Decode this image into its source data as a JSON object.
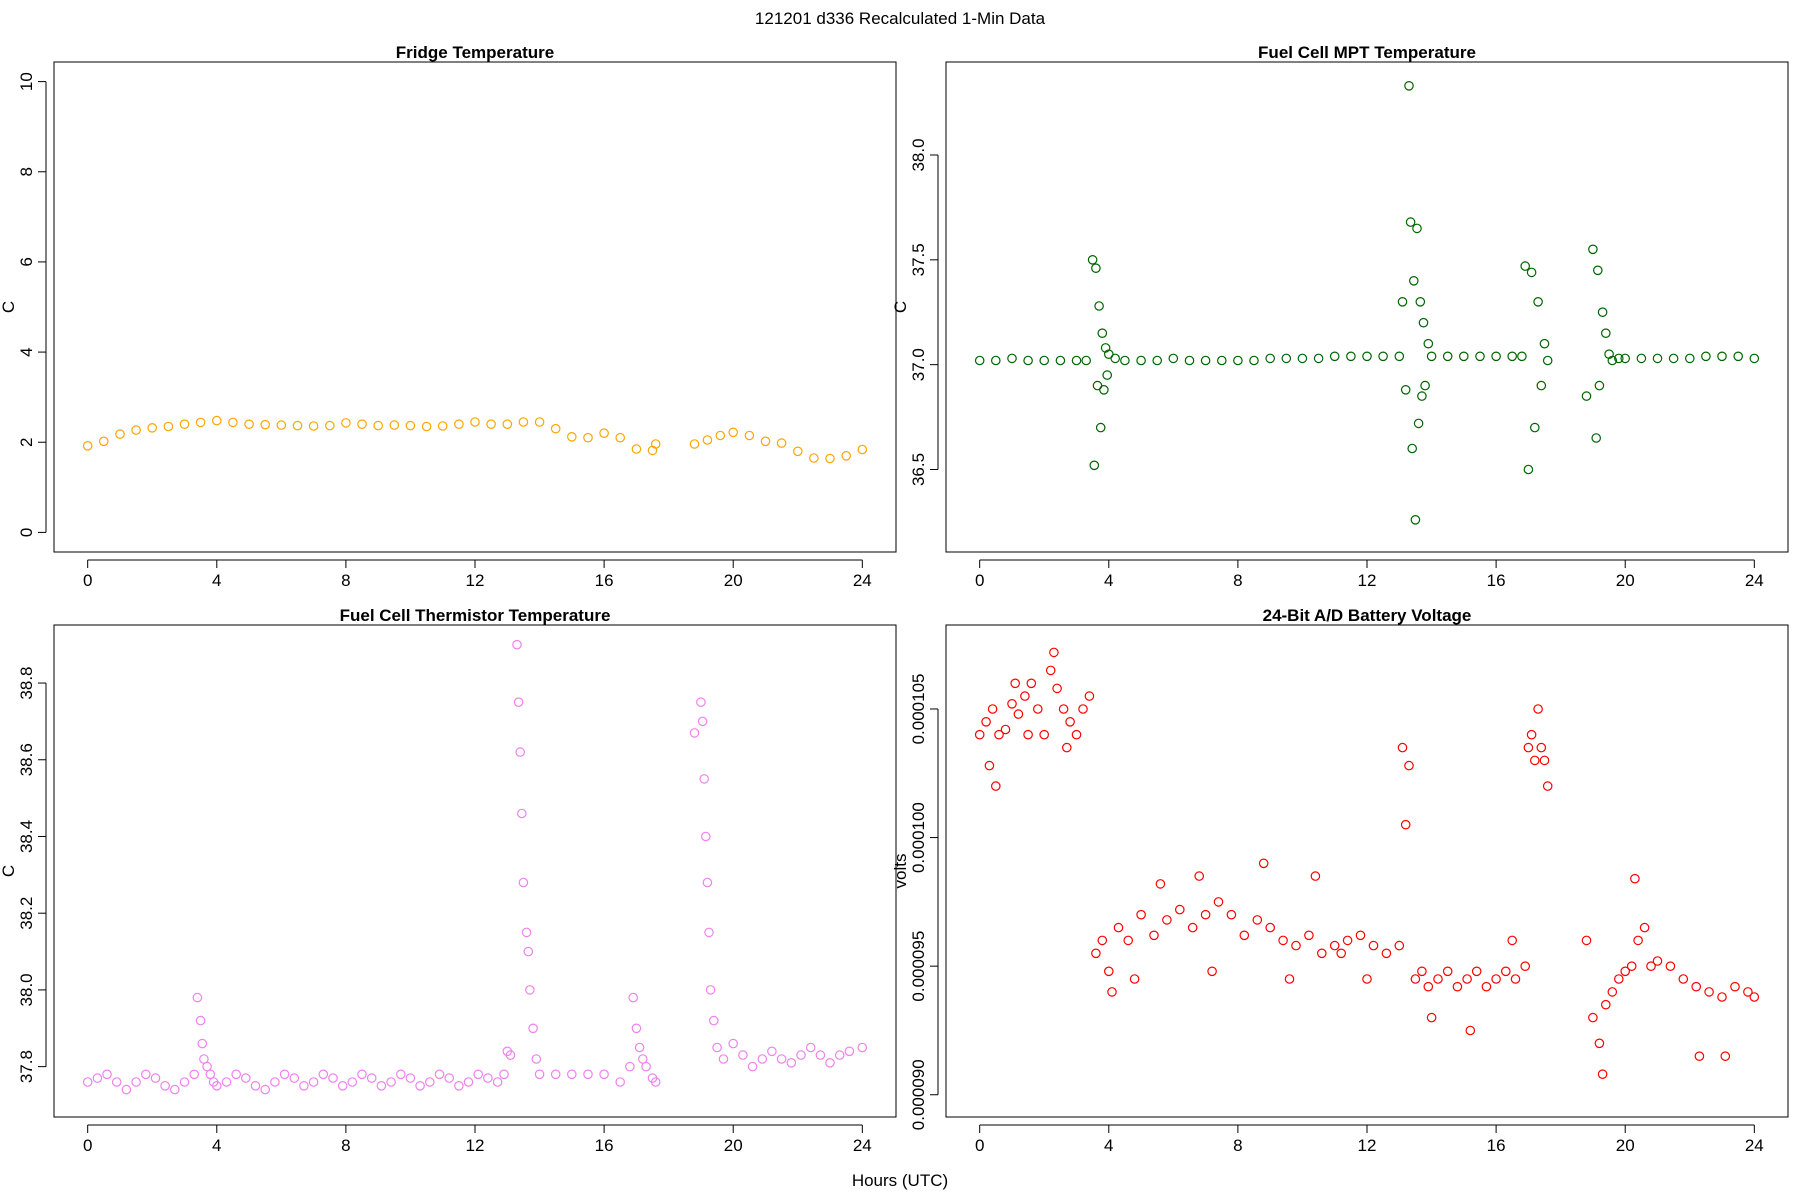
{
  "figure": {
    "suptitle": "121201   d336   Recalculated 1-Min Data",
    "xlabel": "Hours (UTC)"
  },
  "chart_data": [
    {
      "type": "scatter",
      "title": "Fridge Temperature",
      "ylabel": "C",
      "xlabel": "",
      "color": "#ffa500",
      "xlim": [
        0,
        24
      ],
      "ylim": [
        0,
        10
      ],
      "xticks": [
        0,
        4,
        8,
        12,
        16,
        20,
        24
      ],
      "yticks": [
        0,
        2,
        4,
        6,
        8,
        10
      ],
      "ytick_labels": [
        "0",
        "2",
        "4",
        "6",
        "8",
        "10"
      ],
      "grid": false,
      "series": [
        {
          "x": [
            0.0,
            0.5,
            1.0,
            1.5,
            2.0,
            2.5,
            3.0,
            3.5,
            4.0,
            4.5,
            5.0,
            5.5,
            6.0,
            6.5,
            7.0,
            7.5,
            8.0,
            8.5,
            9.0,
            9.5,
            10.0,
            10.5,
            11.0,
            11.5,
            12.0,
            12.5,
            13.0,
            13.5,
            14.0,
            14.5,
            15.0,
            15.5,
            16.0,
            16.5,
            17.0,
            17.5,
            17.6,
            18.8,
            19.2,
            19.6,
            20.0,
            20.5,
            21.0,
            21.5,
            22.0,
            22.5,
            23.0,
            23.5,
            24.0
          ],
          "y": [
            1.92,
            2.02,
            2.18,
            2.27,
            2.32,
            2.35,
            2.4,
            2.44,
            2.48,
            2.44,
            2.4,
            2.39,
            2.38,
            2.37,
            2.36,
            2.37,
            2.43,
            2.4,
            2.37,
            2.38,
            2.37,
            2.35,
            2.36,
            2.4,
            2.45,
            2.4,
            2.4,
            2.45,
            2.45,
            2.3,
            2.12,
            2.1,
            2.2,
            2.1,
            1.85,
            1.82,
            1.96,
            1.96,
            2.05,
            2.15,
            2.22,
            2.15,
            2.02,
            1.98,
            1.8,
            1.65,
            1.64,
            1.7,
            1.84
          ]
        }
      ]
    },
    {
      "type": "scatter",
      "title": "Fuel Cell MPT Temperature",
      "ylabel": "C",
      "xlabel": "",
      "color": "#006400",
      "xlim": [
        0,
        24
      ],
      "ylim": [
        36.2,
        38.35
      ],
      "xticks": [
        0,
        4,
        8,
        12,
        16,
        20,
        24
      ],
      "yticks": [
        36.5,
        37.0,
        37.5,
        38.0
      ],
      "ytick_labels": [
        "36.5",
        "37.0",
        "37.5",
        "38.0"
      ],
      "grid": false,
      "series": [
        {
          "x": [
            0.0,
            0.5,
            1.0,
            1.5,
            2.0,
            2.5,
            3.0,
            3.3,
            3.5,
            3.55,
            3.6,
            3.65,
            3.7,
            3.75,
            3.8,
            3.85,
            3.9,
            3.95,
            4.0,
            4.2,
            4.5,
            5.0,
            5.5,
            6.0,
            6.5,
            7.0,
            7.5,
            8.0,
            8.5,
            9.0,
            9.5,
            10.0,
            10.5,
            11.0,
            11.5,
            12.0,
            12.5,
            13.0,
            13.1,
            13.2,
            13.3,
            13.35,
            13.4,
            13.45,
            13.5,
            13.55,
            13.6,
            13.65,
            13.7,
            13.75,
            13.8,
            13.9,
            14.0,
            14.5,
            15.0,
            15.5,
            16.0,
            16.5,
            16.8,
            16.9,
            17.0,
            17.1,
            17.2,
            17.3,
            17.4,
            17.5,
            17.6,
            18.8,
            19.0,
            19.1,
            19.15,
            19.2,
            19.3,
            19.4,
            19.5,
            19.6,
            19.8,
            20.0,
            20.5,
            21.0,
            21.5,
            22.0,
            22.5,
            23.0,
            23.5,
            24.0
          ],
          "y": [
            37.02,
            37.02,
            37.03,
            37.02,
            37.02,
            37.02,
            37.02,
            37.02,
            37.5,
            36.52,
            37.46,
            36.9,
            37.28,
            36.7,
            37.15,
            36.88,
            37.08,
            36.95,
            37.05,
            37.03,
            37.02,
            37.02,
            37.02,
            37.03,
            37.02,
            37.02,
            37.02,
            37.02,
            37.02,
            37.03,
            37.03,
            37.03,
            37.03,
            37.04,
            37.04,
            37.04,
            37.04,
            37.04,
            37.3,
            36.88,
            38.33,
            37.68,
            36.6,
            37.4,
            36.26,
            37.65,
            36.72,
            37.3,
            36.85,
            37.2,
            36.9,
            37.1,
            37.04,
            37.04,
            37.04,
            37.04,
            37.04,
            37.04,
            37.04,
            37.47,
            36.5,
            37.44,
            36.7,
            37.3,
            36.9,
            37.1,
            37.02,
            36.85,
            37.55,
            36.65,
            37.45,
            36.9,
            37.25,
            37.15,
            37.05,
            37.02,
            37.03,
            37.03,
            37.03,
            37.03,
            37.03,
            37.03,
            37.04,
            37.04,
            37.04,
            37.03
          ]
        }
      ]
    },
    {
      "type": "scatter",
      "title": "Fuel Cell Thermistor Temperature",
      "ylabel": "C",
      "xlabel": "",
      "color": "#ee82ee",
      "xlim": [
        0,
        24
      ],
      "ylim": [
        37.72,
        38.9
      ],
      "xticks": [
        0,
        4,
        8,
        12,
        16,
        20,
        24
      ],
      "yticks": [
        37.8,
        38.0,
        38.2,
        38.4,
        38.6,
        38.8
      ],
      "ytick_labels": [
        "37.8",
        "38.0",
        "38.2",
        "38.4",
        "38.6",
        "38.8"
      ],
      "grid": false,
      "series": [
        {
          "x": [
            0.0,
            0.3,
            0.6,
            0.9,
            1.2,
            1.5,
            1.8,
            2.1,
            2.4,
            2.7,
            3.0,
            3.3,
            3.4,
            3.5,
            3.55,
            3.6,
            3.7,
            3.8,
            3.9,
            4.0,
            4.3,
            4.6,
            4.9,
            5.2,
            5.5,
            5.8,
            6.1,
            6.4,
            6.7,
            7.0,
            7.3,
            7.6,
            7.9,
            8.2,
            8.5,
            8.8,
            9.1,
            9.4,
            9.7,
            10.0,
            10.3,
            10.6,
            10.9,
            11.2,
            11.5,
            11.8,
            12.1,
            12.4,
            12.7,
            12.9,
            13.0,
            13.1,
            13.3,
            13.35,
            13.4,
            13.45,
            13.5,
            13.6,
            13.65,
            13.7,
            13.8,
            13.9,
            14.0,
            14.5,
            15.0,
            15.5,
            16.0,
            16.5,
            16.8,
            16.9,
            17.0,
            17.1,
            17.2,
            17.3,
            17.5,
            17.6,
            18.8,
            19.0,
            19.05,
            19.1,
            19.15,
            19.2,
            19.25,
            19.3,
            19.4,
            19.5,
            19.7,
            20.0,
            20.3,
            20.6,
            20.9,
            21.2,
            21.5,
            21.8,
            22.1,
            22.4,
            22.7,
            23.0,
            23.3,
            23.6,
            24.0
          ],
          "y": [
            37.76,
            37.77,
            37.78,
            37.76,
            37.74,
            37.76,
            37.78,
            37.77,
            37.75,
            37.74,
            37.76,
            37.78,
            37.98,
            37.92,
            37.86,
            37.82,
            37.8,
            37.78,
            37.76,
            37.75,
            37.76,
            37.78,
            37.77,
            37.75,
            37.74,
            37.76,
            37.78,
            37.77,
            37.75,
            37.76,
            37.78,
            37.77,
            37.75,
            37.76,
            37.78,
            37.77,
            37.75,
            37.76,
            37.78,
            37.77,
            37.75,
            37.76,
            37.78,
            37.77,
            37.75,
            37.76,
            37.78,
            37.77,
            37.76,
            37.78,
            37.84,
            37.83,
            38.9,
            38.75,
            38.62,
            38.46,
            38.28,
            38.15,
            38.1,
            38.0,
            37.9,
            37.82,
            37.78,
            37.78,
            37.78,
            37.78,
            37.78,
            37.76,
            37.8,
            37.98,
            37.9,
            37.85,
            37.82,
            37.8,
            37.77,
            37.76,
            38.67,
            38.75,
            38.7,
            38.55,
            38.4,
            38.28,
            38.15,
            38.0,
            37.92,
            37.85,
            37.82,
            37.86,
            37.83,
            37.8,
            37.82,
            37.84,
            37.82,
            37.81,
            37.83,
            37.85,
            37.83,
            37.81,
            37.83,
            37.84,
            37.85
          ]
        }
      ]
    },
    {
      "type": "scatter",
      "title": "24-Bit A/D Battery Voltage",
      "ylabel": "volts",
      "xlabel": "",
      "color": "#ff0000",
      "xlim": [
        0,
        24
      ],
      "ylim": [
        8.99e-05,
        0.0001075
      ],
      "xticks": [
        0,
        4,
        8,
        12,
        16,
        20,
        24
      ],
      "yticks": [
        9e-05,
        9.5e-05,
        0.0001,
        0.000105
      ],
      "ytick_labels": [
        "0.000090",
        "0.000095",
        "0.000100",
        "0.000105"
      ],
      "grid": false,
      "series": [
        {
          "x": [
            0.0,
            0.2,
            0.4,
            0.6,
            0.8,
            1.0,
            1.2,
            1.4,
            1.6,
            1.8,
            2.0,
            2.2,
            2.4,
            2.6,
            2.8,
            3.0,
            3.2,
            3.4,
            0.5,
            1.5,
            2.3,
            0.3,
            1.1,
            2.7,
            3.6,
            3.8,
            4.0,
            4.3,
            4.6,
            5.0,
            5.4,
            5.8,
            6.2,
            6.6,
            7.0,
            7.4,
            7.8,
            8.2,
            8.6,
            9.0,
            9.4,
            9.8,
            10.2,
            10.6,
            11.0,
            11.4,
            11.8,
            12.2,
            12.6,
            13.0,
            4.1,
            5.6,
            7.2,
            8.8,
            10.4,
            12.0,
            4.8,
            6.8,
            9.6,
            11.2,
            13.1,
            13.2,
            13.3,
            13.5,
            13.7,
            13.9,
            14.2,
            14.5,
            14.8,
            15.1,
            15.4,
            15.7,
            16.0,
            16.3,
            16.6,
            16.9,
            14.0,
            15.2,
            16.5,
            17.0,
            17.1,
            17.2,
            17.3,
            17.4,
            17.5,
            17.6,
            18.8,
            19.0,
            19.2,
            19.4,
            19.6,
            19.8,
            20.0,
            20.2,
            20.4,
            20.6,
            20.8,
            21.0,
            21.4,
            21.8,
            22.2,
            22.6,
            23.0,
            23.4,
            23.8,
            24.0,
            20.3,
            22.3,
            19.3,
            23.1
          ],
          "y": [
            0.000104,
            0.0001045,
            0.000105,
            0.000104,
            0.0001042,
            0.0001052,
            0.0001048,
            0.0001055,
            0.000106,
            0.000105,
            0.000104,
            0.0001065,
            0.0001058,
            0.000105,
            0.0001045,
            0.000104,
            0.000105,
            0.0001055,
            0.000102,
            0.000104,
            0.0001072,
            0.0001028,
            0.000106,
            0.0001035,
            9.55e-05,
            9.6e-05,
            9.48e-05,
            9.65e-05,
            9.6e-05,
            9.7e-05,
            9.62e-05,
            9.68e-05,
            9.72e-05,
            9.65e-05,
            9.7e-05,
            9.75e-05,
            9.7e-05,
            9.62e-05,
            9.68e-05,
            9.65e-05,
            9.6e-05,
            9.58e-05,
            9.62e-05,
            9.55e-05,
            9.58e-05,
            9.6e-05,
            9.62e-05,
            9.58e-05,
            9.55e-05,
            9.58e-05,
            9.4e-05,
            9.82e-05,
            9.48e-05,
            9.9e-05,
            9.85e-05,
            9.45e-05,
            9.45e-05,
            9.85e-05,
            9.45e-05,
            9.55e-05,
            0.0001035,
            0.0001005,
            0.0001028,
            9.45e-05,
            9.48e-05,
            9.42e-05,
            9.45e-05,
            9.48e-05,
            9.42e-05,
            9.45e-05,
            9.48e-05,
            9.42e-05,
            9.45e-05,
            9.48e-05,
            9.45e-05,
            9.5e-05,
            9.3e-05,
            9.25e-05,
            9.6e-05,
            0.0001035,
            0.000104,
            0.000103,
            0.000105,
            0.0001035,
            0.000103,
            0.000102,
            9.6e-05,
            9.3e-05,
            9.2e-05,
            9.35e-05,
            9.4e-05,
            9.45e-05,
            9.48e-05,
            9.5e-05,
            9.6e-05,
            9.65e-05,
            9.5e-05,
            9.52e-05,
            9.5e-05,
            9.45e-05,
            9.42e-05,
            9.4e-05,
            9.38e-05,
            9.42e-05,
            9.4e-05,
            9.38e-05,
            9.84e-05,
            9.15e-05,
            9.08e-05,
            9.15e-05
          ]
        }
      ]
    }
  ]
}
